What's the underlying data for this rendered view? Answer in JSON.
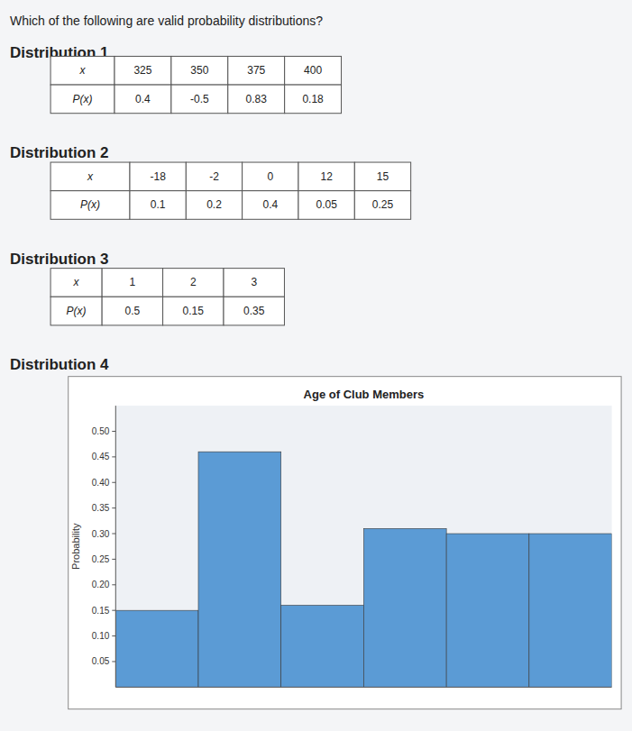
{
  "title": "Which of the following are valid probability distributions?",
  "chart_data": [
    {
      "type": "table",
      "title": "Distribution 1",
      "xlabel": "x",
      "ylabel": "P(x)",
      "x": [
        325,
        350,
        375,
        400
      ],
      "values": [
        0.4,
        -0.5,
        0.83,
        0.18
      ]
    },
    {
      "type": "table",
      "title": "Distribution 2",
      "xlabel": "x",
      "ylabel": "P(x)",
      "x": [
        -18,
        -2,
        0,
        12,
        15
      ],
      "values": [
        0.1,
        0.2,
        0.4,
        0.05,
        0.25
      ]
    },
    {
      "type": "table",
      "title": "Distribution 3",
      "xlabel": "x",
      "ylabel": "P(x)",
      "x": [
        1,
        2,
        3
      ],
      "values": [
        0.5,
        0.15,
        0.35
      ]
    },
    {
      "type": "bar",
      "subtitle": "Distribution 4",
      "title": "Age of Club Members",
      "ylabel": "Probability",
      "categories": [
        null,
        null,
        null,
        null,
        null,
        null
      ],
      "values": [
        0.15,
        0.46,
        0.16,
        0.31,
        0.3,
        0.3
      ],
      "color": "#5b9bd5",
      "ylim": [
        0,
        0.55
      ],
      "yticks": [
        0.05,
        {
          "value": 0.1,
          "label": "0.10"
        },
        0.15,
        {
          "value": 0.2,
          "label": "0.20"
        },
        0.25,
        {
          "value": 0.3,
          "label": "0.30"
        },
        0.35,
        {
          "value": 0.4,
          "label": "0.40"
        },
        0.45,
        {
          "value": 0.5,
          "label": "0.50"
        }
      ],
      "grid": false,
      "tick_labels": "y"
    }
  ]
}
